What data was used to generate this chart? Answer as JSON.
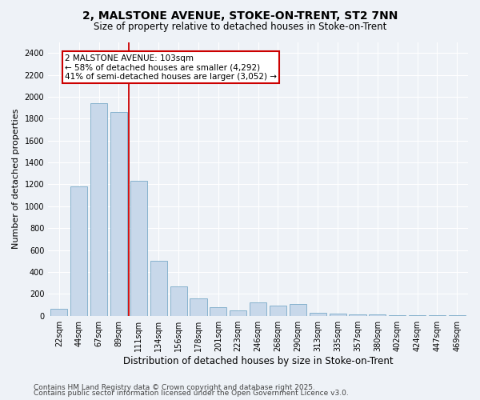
{
  "title_line1": "2, MALSTONE AVENUE, STOKE-ON-TRENT, ST2 7NN",
  "title_line2": "Size of property relative to detached houses in Stoke-on-Trent",
  "xlabel": "Distribution of detached houses by size in Stoke-on-Trent",
  "ylabel": "Number of detached properties",
  "bar_labels": [
    "22sqm",
    "44sqm",
    "67sqm",
    "89sqm",
    "111sqm",
    "134sqm",
    "156sqm",
    "178sqm",
    "201sqm",
    "223sqm",
    "246sqm",
    "268sqm",
    "290sqm",
    "313sqm",
    "335sqm",
    "357sqm",
    "380sqm",
    "402sqm",
    "424sqm",
    "447sqm",
    "469sqm"
  ],
  "bar_values": [
    60,
    1180,
    1940,
    1860,
    1230,
    500,
    270,
    160,
    80,
    50,
    120,
    95,
    110,
    30,
    20,
    10,
    10,
    5,
    5,
    3,
    2
  ],
  "bar_color": "#c8d8ea",
  "bar_edgecolor": "#7aaac8",
  "annotation_line1": "2 MALSTONE AVENUE: 103sqm",
  "annotation_line2": "← 58% of detached houses are smaller (4,292)",
  "annotation_line3": "41% of semi-detached houses are larger (3,052) →",
  "annotation_box_facecolor": "#ffffff",
  "annotation_box_edgecolor": "#cc0000",
  "vline_color": "#cc0000",
  "vline_x": 3.5,
  "ylim": [
    0,
    2500
  ],
  "yticks": [
    0,
    200,
    400,
    600,
    800,
    1000,
    1200,
    1400,
    1600,
    1800,
    2000,
    2200,
    2400
  ],
  "background_color": "#eef2f7",
  "plot_bg_color": "#eef2f7",
  "footer_line1": "Contains HM Land Registry data © Crown copyright and database right 2025.",
  "footer_line2": "Contains public sector information licensed under the Open Government Licence v3.0.",
  "title_fontsize": 10,
  "subtitle_fontsize": 8.5,
  "ylabel_fontsize": 8,
  "xlabel_fontsize": 8.5,
  "tick_fontsize": 7,
  "annotation_fontsize": 7.5,
  "footer_fontsize": 6.5
}
